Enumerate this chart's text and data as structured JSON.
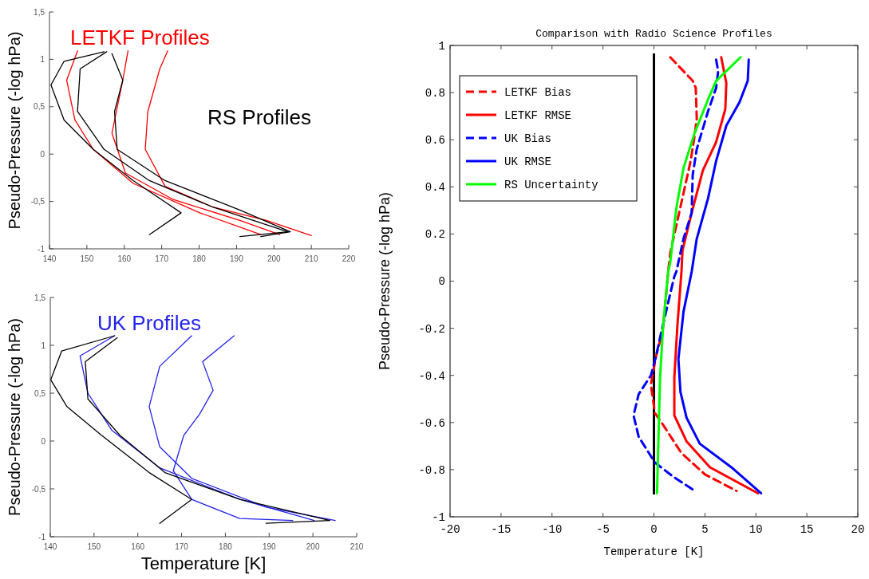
{
  "chart_data": [
    {
      "type": "line",
      "ylabel": "Pseudo-Pressure (-log hPa)",
      "xlim": [
        140,
        220
      ],
      "ylim": [
        -1,
        1.5
      ],
      "xticks": [
        140,
        150,
        160,
        170,
        180,
        190,
        200,
        210,
        220
      ],
      "yticks": [
        {
          "value": -1,
          "label": "-1"
        },
        {
          "value": -0.5,
          "label": "-0,5"
        },
        0,
        {
          "value": 0.5,
          "label": "0,5"
        },
        1,
        {
          "value": 1.5,
          "label": "1,5"
        }
      ],
      "series": [
        {
          "name": "LETKF Profiles",
          "color": "#ff0000",
          "x": [
            171.6,
            169.5,
            166.3,
            165.6,
            170.9,
            183.7,
            198,
            210
          ],
          "values": [
            1.09,
            0.9,
            0.45,
            0.05,
            -0.34,
            -0.56,
            -0.7,
            -0.86
          ]
        },
        {
          "color": "#ff0000",
          "x": [
            161,
            159.6,
            156.7,
            160.3,
            173.1,
            190.9,
            201.5
          ],
          "values": [
            1.09,
            0.78,
            0.22,
            -0.2,
            -0.48,
            -0.7,
            -0.85
          ]
        },
        {
          "color": "#ff0000",
          "x": [
            147.5,
            144.6,
            146.8,
            151.7,
            162.4,
            180.2,
            196.5
          ],
          "values": [
            1.09,
            0.78,
            0.36,
            0.05,
            -0.31,
            -0.62,
            -0.85
          ]
        },
        {
          "name": "RS Profiles",
          "color": "#000000",
          "x": [
            154.6,
            143.9,
            140.4,
            143.9,
            151.7,
            162.4,
            175.2,
            166.7
          ],
          "values": [
            1.08,
            0.98,
            0.73,
            0.36,
            0.05,
            -0.28,
            -0.62,
            -0.85
          ]
        },
        {
          "color": "#000000",
          "x": [
            155.3,
            148.2,
            147.5,
            154.6,
            166.7,
            183.7,
            203.7,
            190.9
          ],
          "values": [
            1.08,
            0.9,
            0.45,
            0.05,
            -0.28,
            -0.56,
            -0.82,
            -0.87
          ]
        },
        {
          "color": "#000000",
          "x": [
            156.7,
            159.6,
            157.4,
            158.1,
            170.9,
            190.9,
            204.4,
            196.5
          ],
          "values": [
            1.06,
            0.78,
            0.45,
            0.05,
            -0.28,
            -0.59,
            -0.82,
            -0.87
          ]
        }
      ]
    },
    {
      "type": "line",
      "xlabel": "Temperature [K]",
      "ylabel": "Pseudo-Pressure (-log hPa)",
      "xlim": [
        140,
        210
      ],
      "ylim": [
        -1,
        1.5
      ],
      "xticks": [
        140,
        150,
        160,
        170,
        180,
        190,
        200,
        210
      ],
      "yticks": [
        {
          "value": -1,
          "label": "-1"
        },
        {
          "value": -0.5,
          "label": "-0,5"
        },
        0,
        {
          "value": 0.5,
          "label": "0,5"
        },
        1,
        {
          "value": 1.5,
          "label": "1,5"
        }
      ],
      "series": [
        {
          "name": "UK Profiles",
          "color": "#2222ee",
          "x": [
            182,
            174.8,
            177.2,
            174.1,
            170.5,
            168.1,
            172.3,
            183.3,
            195.4
          ],
          "values": [
            1.1,
            0.83,
            0.53,
            0.28,
            0.06,
            -0.31,
            -0.61,
            -0.81,
            -0.83
          ]
        },
        {
          "color": "#2222ee",
          "x": [
            172.3,
            165,
            162.6,
            165,
            172.3,
            189.3,
            205.1
          ],
          "values": [
            1.1,
            0.78,
            0.36,
            -0.06,
            -0.39,
            -0.69,
            -0.83
          ]
        },
        {
          "color": "#2222ee",
          "x": [
            154.7,
            146.8,
            148.6,
            154.1,
            165,
            183.3,
            200.3
          ],
          "values": [
            1.1,
            0.89,
            0.5,
            0.11,
            -0.28,
            -0.61,
            -0.83
          ]
        },
        {
          "color": "#000000",
          "x": [
            154.7,
            142.6,
            140.1,
            143.8,
            151.7,
            162.6,
            172.3,
            165
          ],
          "values": [
            1.1,
            0.94,
            0.64,
            0.36,
            0.06,
            -0.33,
            -0.61,
            -0.86
          ]
        },
        {
          "color": "#000000",
          "x": [
            155.3,
            148,
            148.6,
            155.9,
            166.2,
            183.3,
            203.9,
            189.3
          ],
          "values": [
            1.08,
            0.83,
            0.44,
            0.06,
            -0.33,
            -0.61,
            -0.83,
            -0.86
          ]
        }
      ]
    },
    {
      "type": "line",
      "title": "Comparison with Radio Science Profiles",
      "xlabel": "Temperature [K]",
      "ylabel": "Pseudo-Pressure (-log hPa)",
      "xlim": [
        -20,
        20
      ],
      "ylim": [
        -1,
        1
      ],
      "xticks": [
        -20,
        -15,
        -10,
        -5,
        0,
        5,
        10,
        15,
        20
      ],
      "yticks": [
        -1,
        -0.8,
        -0.6,
        -0.4,
        -0.2,
        0,
        0.2,
        0.4,
        0.6,
        0.8,
        1
      ],
      "legend": "top left",
      "ref_lines": [
        {
          "axis": "x",
          "value": 0,
          "color": "#000000"
        }
      ],
      "series": [
        {
          "name": "LETKF Bias",
          "color": "#ff0000",
          "line_style": "dashed",
          "x": [
            1.6,
            3.8,
            4.1,
            4.2,
            4,
            3.6,
            1.6,
            1.4,
            0.86,
            0.2,
            -0.3,
            0.1,
            0.9,
            2.7,
            5,
            8.1
          ],
          "values": [
            0.95,
            0.85,
            0.82,
            0.69,
            0.62,
            0.51,
            0.12,
            0.04,
            -0.21,
            -0.32,
            -0.44,
            -0.56,
            -0.61,
            -0.73,
            -0.82,
            -0.89
          ]
        },
        {
          "name": "LETKF RMSE",
          "color": "#ff0000",
          "line_style": "solid",
          "x": [
            6.6,
            7.1,
            7,
            6.1,
            4.8,
            3.7,
            2.8,
            2.7,
            2.3,
            2,
            2,
            3.2,
            5.5,
            10.2
          ],
          "values": [
            0.95,
            0.84,
            0.73,
            0.59,
            0.47,
            0.29,
            0.13,
            0.04,
            -0.19,
            -0.41,
            -0.57,
            -0.68,
            -0.79,
            -0.9
          ]
        },
        {
          "name": "UK Bias",
          "color": "#0000ff",
          "line_style": "dashed",
          "x": [
            6.1,
            6.3,
            6.1,
            5.3,
            4.2,
            3.8,
            3.7,
            2.9,
            2.2,
            2,
            1.4,
            0.7,
            0.2,
            -0.3,
            -1.5,
            -2,
            -1.5,
            0.1,
            1.9,
            4
          ],
          "values": [
            0.94,
            0.89,
            0.82,
            0.72,
            0.56,
            0.45,
            0.29,
            0.18,
            0.04,
            0.02,
            -0.09,
            -0.22,
            -0.32,
            -0.4,
            -0.48,
            -0.57,
            -0.66,
            -0.77,
            -0.83,
            -0.89
          ]
        },
        {
          "name": "UK RMSE",
          "color": "#0000ff",
          "line_style": "solid",
          "x": [
            9.3,
            9.2,
            8.4,
            7.1,
            6.1,
            5.3,
            4.2,
            3.7,
            2.9,
            2.4,
            2.6,
            3.2,
            4.5,
            7.6,
            10.5
          ],
          "values": [
            0.94,
            0.85,
            0.76,
            0.66,
            0.51,
            0.35,
            0.18,
            0.04,
            -0.13,
            -0.33,
            -0.47,
            -0.58,
            -0.69,
            -0.79,
            -0.9
          ]
        },
        {
          "name": "RS Uncertainty",
          "color": "#00ff00",
          "line_style": "solid",
          "x": [
            8.5,
            6.1,
            5.3,
            4,
            2.9,
            2.2,
            1.6,
            1.4,
            0.9,
            0.6,
            0.3
          ],
          "values": [
            0.95,
            0.85,
            0.77,
            0.63,
            0.48,
            0.31,
            0.08,
            0.04,
            -0.19,
            -0.41,
            -0.9
          ]
        }
      ]
    }
  ]
}
